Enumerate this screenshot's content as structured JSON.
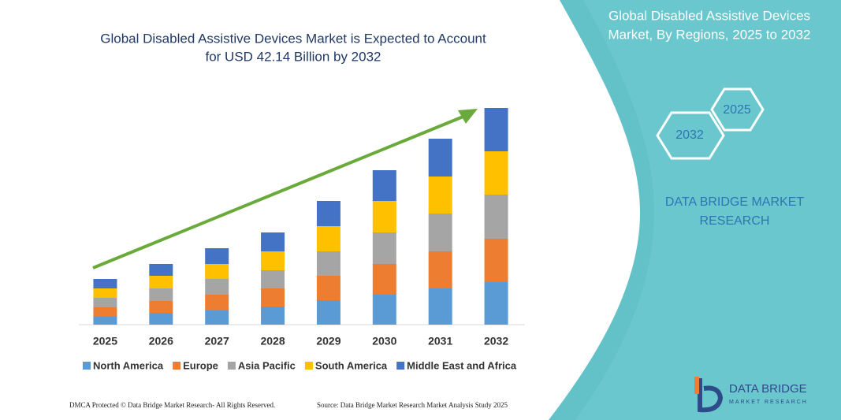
{
  "chart_data": {
    "type": "bar",
    "stacked": true,
    "title": [
      "Global Disabled Assistive Devices Market is Expected to Account",
      "for USD 42.14 Billion by 2032"
    ],
    "categories": [
      "2025",
      "2026",
      "2027",
      "2028",
      "2029",
      "2030",
      "2031",
      "2032"
    ],
    "series": [
      {
        "name": "North America",
        "color": "#5b9bd5",
        "values": [
          10,
          15,
          18,
          23,
          31,
          38,
          46,
          54
        ]
      },
      {
        "name": "Europe",
        "color": "#ed7d31",
        "values": [
          12,
          15,
          20,
          23,
          31,
          39,
          47,
          55
        ]
      },
      {
        "name": "Asia Pacific",
        "color": "#a5a5a5",
        "values": [
          12,
          16,
          20,
          23,
          31,
          40,
          48,
          56
        ]
      },
      {
        "name": "South America",
        "color": "#ffc000",
        "values": [
          12,
          16,
          19,
          24,
          32,
          40,
          47,
          55
        ]
      },
      {
        "name": "Middle East and Africa",
        "color": "#4472c4",
        "values": [
          12,
          15,
          20,
          24,
          32,
          39,
          48,
          55
        ]
      }
    ],
    "ylim": [
      0,
      275
    ],
    "grid": false
  },
  "panel": {
    "title": [
      "Global Disabled Assistive Devices",
      "Market, By Regions, 2025 to 2032"
    ],
    "hex_labels": [
      "2025",
      "2032"
    ],
    "brand": [
      "DATA BRIDGE MARKET",
      "RESEARCH"
    ],
    "logo": [
      "DATA BRIDGE",
      "MARKET RESEARCH"
    ]
  },
  "footer": {
    "left": "DMCA Protected © Data Bridge Market Research- All Rights Reserved.",
    "right": "Source: Data Bridge Market Research Market Analysis Study 2025"
  }
}
